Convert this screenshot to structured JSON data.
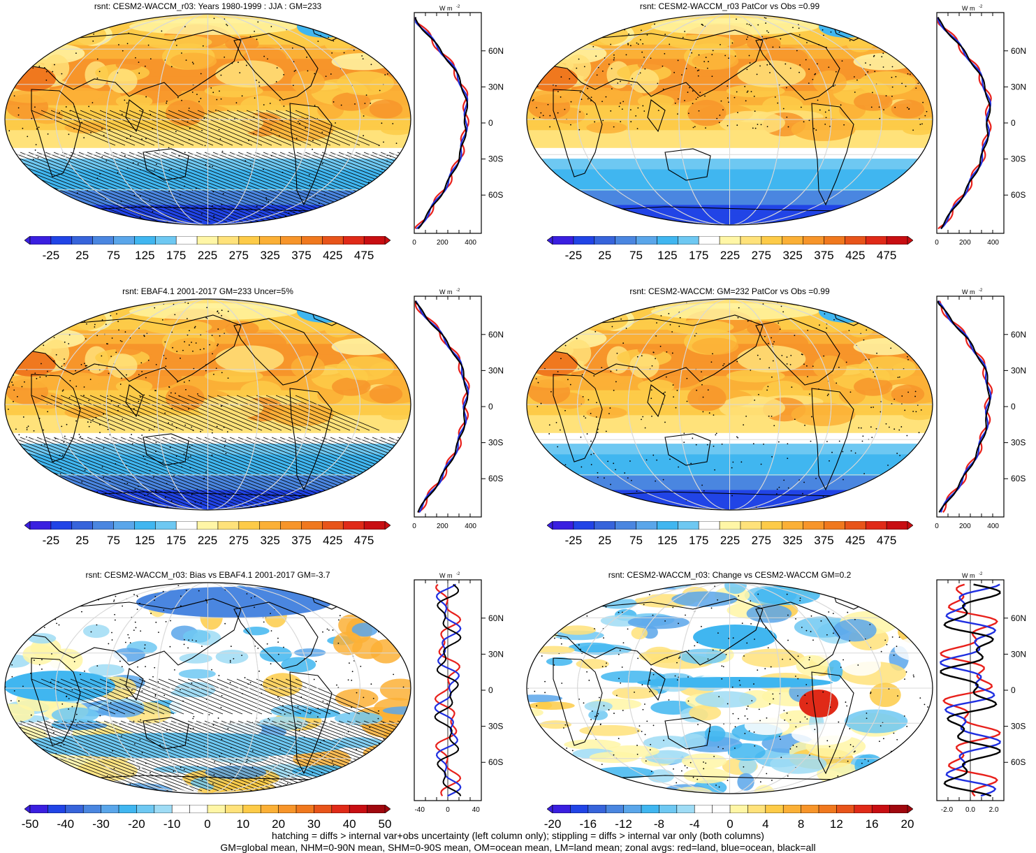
{
  "colors": {
    "land": "#e8201b",
    "ocean": "#1f2fe0",
    "all": "#000000",
    "grid": "#d8d8d8"
  },
  "absolute_palette": [
    "#3a1fe0",
    "#2144e6",
    "#3764db",
    "#4a86e0",
    "#5aa6ea",
    "#40b6f0",
    "#6ec8f2",
    "#ffffff",
    "#fff6a6",
    "#ffe27a",
    "#fdcb48",
    "#fbb036",
    "#f7952a",
    "#f0781e",
    "#e8541a",
    "#e02a18",
    "#c80e12"
  ],
  "diff_palette": [
    "#3a1fe0",
    "#2144e6",
    "#3764db",
    "#4a86e0",
    "#5aa6ea",
    "#40b6f0",
    "#6ec8f2",
    "#9fdcf5",
    "#ffffff",
    "#ffffff",
    "#fff6a6",
    "#ffe27a",
    "#fdcb48",
    "#fbb036",
    "#f7952a",
    "#f0781e",
    "#e8541a",
    "#e02a18",
    "#c80e12",
    "#a0080e"
  ],
  "panels": [
    {
      "title": "rsnt: CESM2-WACCM_r03: Years 1980-1999 : JJA : GM=233",
      "kind": "abs",
      "hatch": true,
      "cbar_labels": [
        "-25",
        "25",
        "75",
        "125",
        "175",
        "225",
        "275",
        "325",
        "375",
        "425",
        "475"
      ]
    },
    {
      "title": "rsnt: CESM2-WACCM_r03 PatCor vs Obs =0.99",
      "kind": "abs",
      "hatch": false,
      "cbar_labels": [
        "-25",
        "25",
        "75",
        "125",
        "175",
        "225",
        "275",
        "325",
        "375",
        "425",
        "475"
      ]
    },
    {
      "title": "rsnt: EBAF4.1 2001-2017 GM=233 Uncer=5%",
      "kind": "abs",
      "hatch": true,
      "cbar_labels": [
        "-25",
        "25",
        "75",
        "125",
        "175",
        "225",
        "275",
        "325",
        "375",
        "425",
        "475"
      ]
    },
    {
      "title": "rsnt: CESM2-WACCM: GM=232 PatCor vs Obs =0.99",
      "kind": "abs",
      "hatch": false,
      "cbar_labels": [
        "-25",
        "25",
        "75",
        "125",
        "175",
        "225",
        "275",
        "325",
        "375",
        "425",
        "475"
      ]
    },
    {
      "title": "rsnt: CESM2-WACCM_r03: Bias vs EBAF4.1 2001-2017 GM=-3.7",
      "kind": "bias",
      "hatch": true,
      "cbar_labels": [
        "-50",
        "-40",
        "-30",
        "-20",
        "-10",
        "0",
        "10",
        "20",
        "30",
        "40",
        "50"
      ]
    },
    {
      "title": "rsnt: CESM2-WACCM_r03: Change vs CESM2-WACCM GM=0.2",
      "kind": "change",
      "hatch": false,
      "cbar_labels": [
        "-20",
        "-16",
        "-12",
        "-8",
        "-4",
        "0",
        "4",
        "8",
        "12",
        "16",
        "20"
      ]
    }
  ],
  "zonal": {
    "unit": "W m",
    "unit_sup": "-2",
    "lat_labels": [
      "60N",
      "30N",
      "0",
      "30S",
      "60S"
    ],
    "abs_xticks": [
      "0",
      "200",
      "400"
    ],
    "bias_xticks": [
      "-40",
      "0",
      "40"
    ],
    "change_xticks": [
      "-2.0",
      "0.0",
      "2.0"
    ]
  },
  "footer": {
    "line1": "hatching = diffs > internal var+obs uncertainty (left column only); stippling = diffs > internal var only (both columns)",
    "line2": "GM=global mean, NHM=0-90N mean, SHM=0-90S mean, OM=ocean mean, LM=land mean; zonal avgs: red=land, blue=ocean, black=all"
  }
}
